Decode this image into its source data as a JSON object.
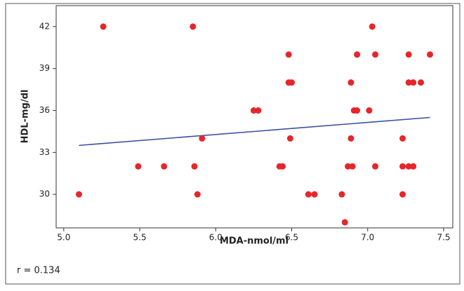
{
  "chart_data": {
    "type": "scatter",
    "x_label": "MDA-nmol/ml",
    "y_label": "HDL-mg/dl",
    "annotation": "r = 0.134",
    "xlim": [
      4.95,
      7.56
    ],
    "ylim": [
      27.6,
      43.5
    ],
    "xticks": [
      {
        "value": 5,
        "label": "5.0"
      },
      5.5,
      {
        "value": 6,
        "label": "6.0"
      },
      6.5,
      {
        "value": 7,
        "label": "7.0"
      },
      7.5
    ],
    "yticks": [
      30,
      33,
      36,
      39,
      42
    ],
    "series": [
      {
        "color": "#e8252a",
        "x": [
          5.1,
          5.26,
          5.49,
          5.66,
          5.85,
          5.86,
          5.88,
          5.91,
          6.25,
          6.28,
          6.42,
          6.44,
          6.48,
          6.48,
          6.5,
          6.49,
          6.61,
          6.65,
          6.83,
          6.85,
          6.87,
          6.9,
          6.89,
          6.89,
          6.91,
          6.93,
          6.93,
          7.01,
          7.03,
          7.05,
          7.05,
          7.23,
          7.23,
          7.23,
          7.27,
          7.27,
          7.27,
          7.3,
          7.3,
          7.35,
          7.41
        ],
        "values": [
          30,
          42,
          32,
          32,
          42,
          32,
          30,
          34,
          36,
          36,
          32,
          32,
          40,
          38,
          38,
          34,
          30,
          30,
          30,
          28,
          32,
          32,
          34,
          38,
          36,
          36,
          40,
          36,
          42,
          40,
          32,
          34,
          32,
          30,
          40,
          38,
          32,
          38,
          32,
          38,
          40
        ]
      }
    ],
    "trend_line": {
      "color": "#3a4fa0",
      "x": [
        5.1,
        7.41
      ],
      "values": [
        33.5,
        35.5
      ]
    }
  }
}
